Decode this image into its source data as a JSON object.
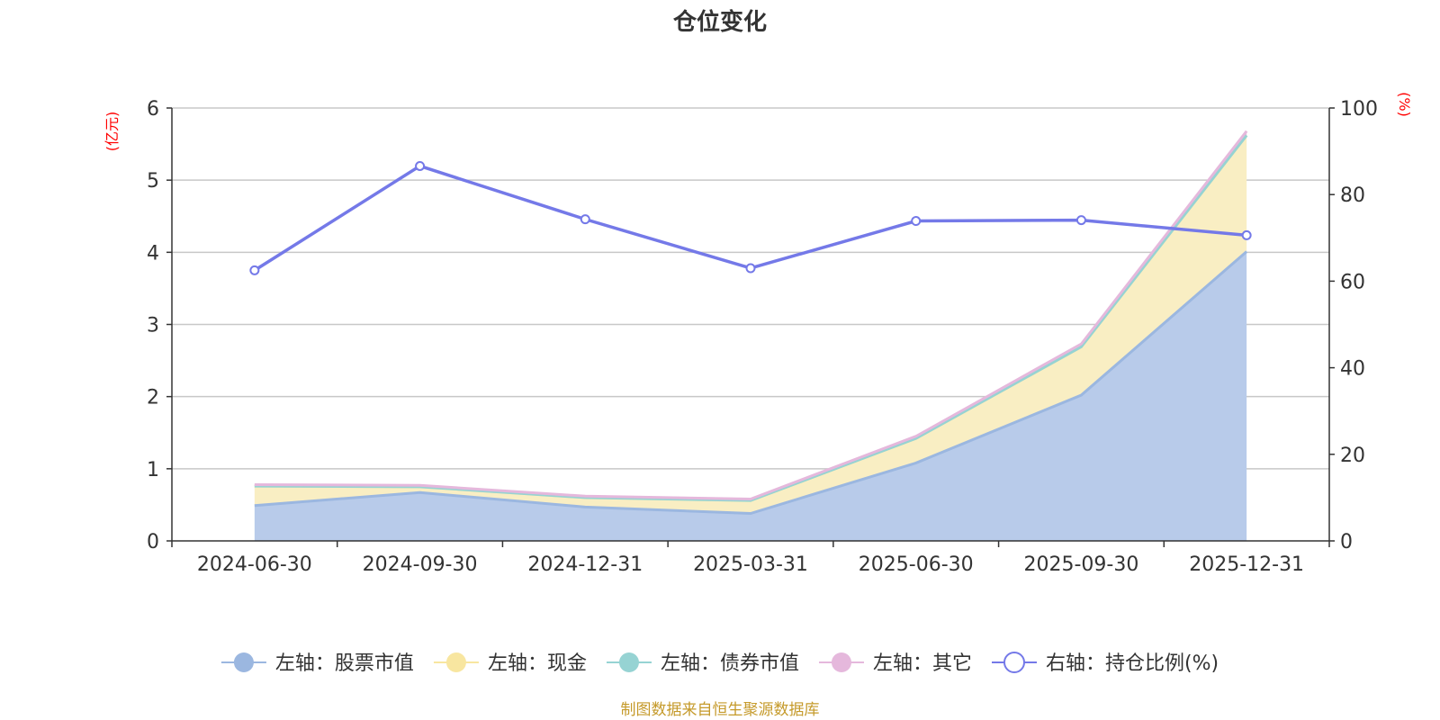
{
  "chart_data": {
    "type": "area",
    "title": "仓位变化",
    "categories": [
      "2024-06-30",
      "2024-09-30",
      "2024-12-31",
      "2025-03-31",
      "2025-06-30",
      "2025-09-30",
      "2025-12-31"
    ],
    "left_axis": {
      "unit": "(亿元)",
      "range": [
        0,
        6
      ],
      "ticks": [
        "0",
        "1",
        "2",
        "3",
        "4",
        "5",
        "6"
      ],
      "tick_values": [
        0,
        1,
        2,
        3,
        4,
        5,
        6
      ]
    },
    "right_axis": {
      "unit": "(%)",
      "range": [
        0,
        100
      ],
      "ticks": [
        "0",
        "20",
        "40",
        "60",
        "80",
        "100"
      ],
      "tick_values": [
        0,
        20,
        40,
        60,
        80,
        100
      ]
    },
    "stacked": true,
    "grid": true,
    "legend_position": "bottom",
    "series": [
      {
        "name": "左轴：股票市值",
        "axis": "left",
        "type": "area",
        "color": "#9bb7e0",
        "fill": "#b8cbea",
        "values": [
          0.49,
          0.67,
          0.47,
          0.38,
          1.08,
          2.02,
          4.01
        ]
      },
      {
        "name": "左轴：现金",
        "axis": "left",
        "type": "area",
        "color": "#f8e6a0",
        "fill": "#f9eec3",
        "values": [
          0.27,
          0.08,
          0.13,
          0.18,
          0.34,
          0.67,
          1.61
        ]
      },
      {
        "name": "左轴：债券市值",
        "axis": "left",
        "type": "area",
        "color": "#96d3d3",
        "fill": "#96d3d3",
        "values": [
          0,
          0,
          0,
          0,
          0,
          0,
          0
        ]
      },
      {
        "name": "左轴：其它",
        "axis": "left",
        "type": "area",
        "color": "#e5b8dc",
        "fill": "#e5b8dc",
        "values": [
          0.02,
          0.02,
          0.02,
          0.02,
          0.03,
          0.04,
          0.06
        ]
      },
      {
        "name": "右轴：持仓比例(%)",
        "axis": "right",
        "type": "line",
        "color": "#7479e8",
        "values": [
          62.5,
          86.6,
          74.3,
          63.0,
          73.9,
          74.1,
          70.6
        ]
      }
    ],
    "source_note": "制图数据来自恒生聚源数据库"
  }
}
